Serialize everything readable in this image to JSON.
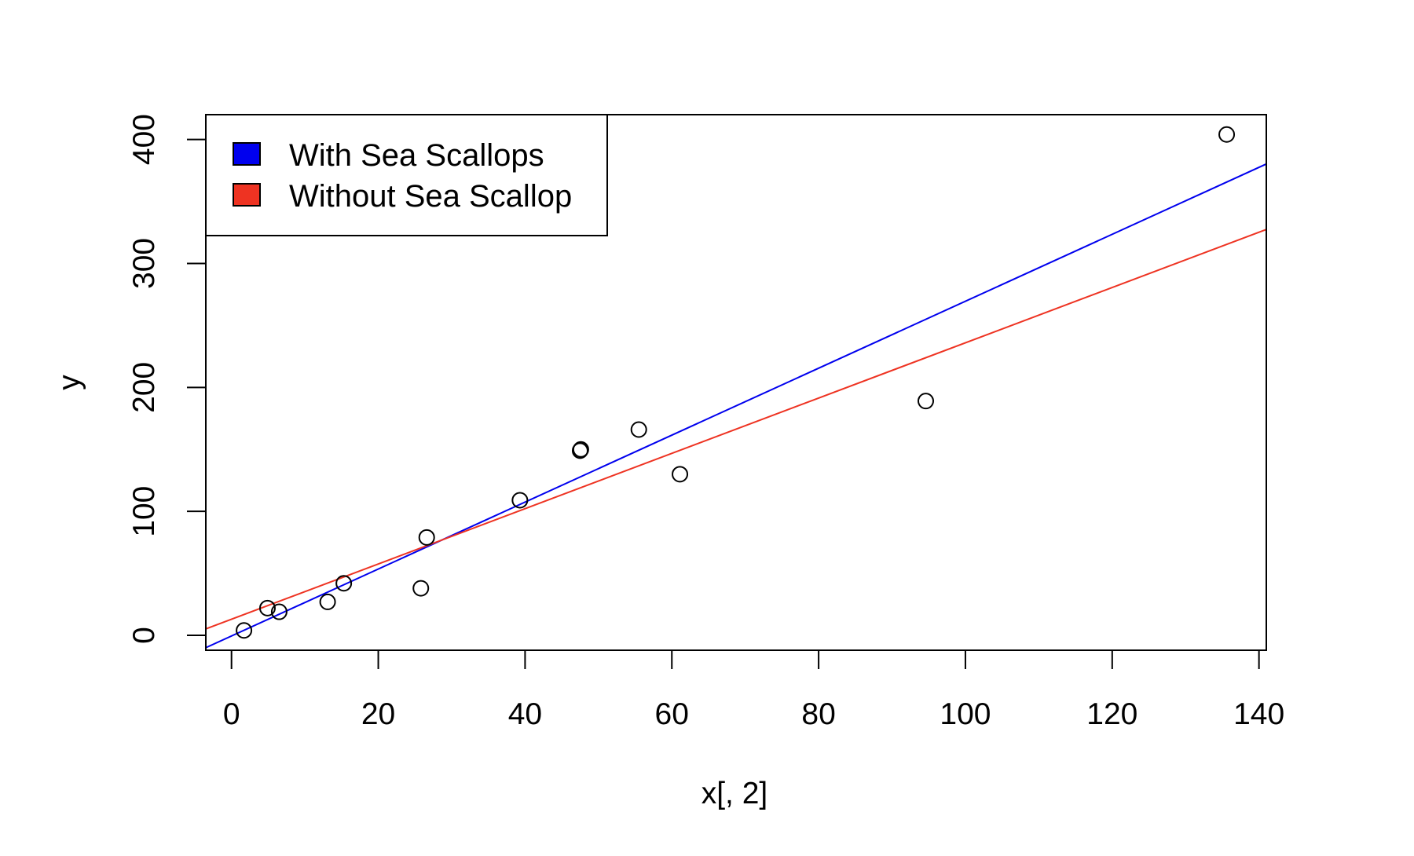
{
  "chart_data": {
    "type": "scatter",
    "title": "",
    "xlabel": "x[, 2]",
    "ylabel": "y",
    "xlim": [
      -3.5,
      141
    ],
    "ylim": [
      -12,
      420
    ],
    "grid": false,
    "legend_position": "top-left",
    "x_ticks": [
      0,
      20,
      40,
      60,
      80,
      100,
      120,
      140
    ],
    "y_ticks": [
      0,
      100,
      200,
      300,
      400
    ],
    "points": [
      {
        "x": 1.7,
        "y": 4
      },
      {
        "x": 4.9,
        "y": 22
      },
      {
        "x": 6.5,
        "y": 19
      },
      {
        "x": 13.1,
        "y": 27
      },
      {
        "x": 15.3,
        "y": 42
      },
      {
        "x": 25.8,
        "y": 38
      },
      {
        "x": 26.6,
        "y": 79
      },
      {
        "x": 39.3,
        "y": 109
      },
      {
        "x": 47.5,
        "y": 149
      },
      {
        "x": 47.6,
        "y": 150
      },
      {
        "x": 55.5,
        "y": 166
      },
      {
        "x": 61.1,
        "y": 130
      },
      {
        "x": 94.6,
        "y": 189
      },
      {
        "x": 135.6,
        "y": 404
      }
    ],
    "series": [
      {
        "name": "With Sea Scallops",
        "type": "line",
        "color": "#0000ee",
        "intercept": -0.5,
        "slope": 2.7
      },
      {
        "name": "Without Sea Scallop",
        "type": "line",
        "color": "#ee3322",
        "intercept": 13,
        "slope": 2.23
      }
    ],
    "point_color": "#000000"
  }
}
